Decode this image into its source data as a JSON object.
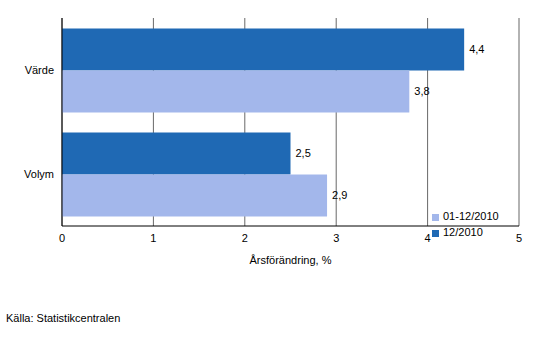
{
  "chart_data": {
    "type": "bar",
    "orientation": "horizontal",
    "categories": [
      "Värde",
      "Volym"
    ],
    "series": [
      {
        "name": "12/2010",
        "color": "#1f69b4",
        "values": [
          4.4,
          2.5
        ],
        "value_labels": [
          "4,4",
          "2,5"
        ]
      },
      {
        "name": "01-12/2010",
        "color": "#a3b7eb",
        "values": [
          3.8,
          2.9
        ],
        "value_labels": [
          "3,8",
          "2,9"
        ]
      }
    ],
    "xlim": [
      0,
      5
    ],
    "xticks": [
      0,
      1,
      2,
      3,
      4,
      5
    ],
    "x_label": "Årsförändring, %",
    "grid": true,
    "legend": "lower right",
    "data_labels": true,
    "source": "Källa: Statistikcentralen"
  }
}
